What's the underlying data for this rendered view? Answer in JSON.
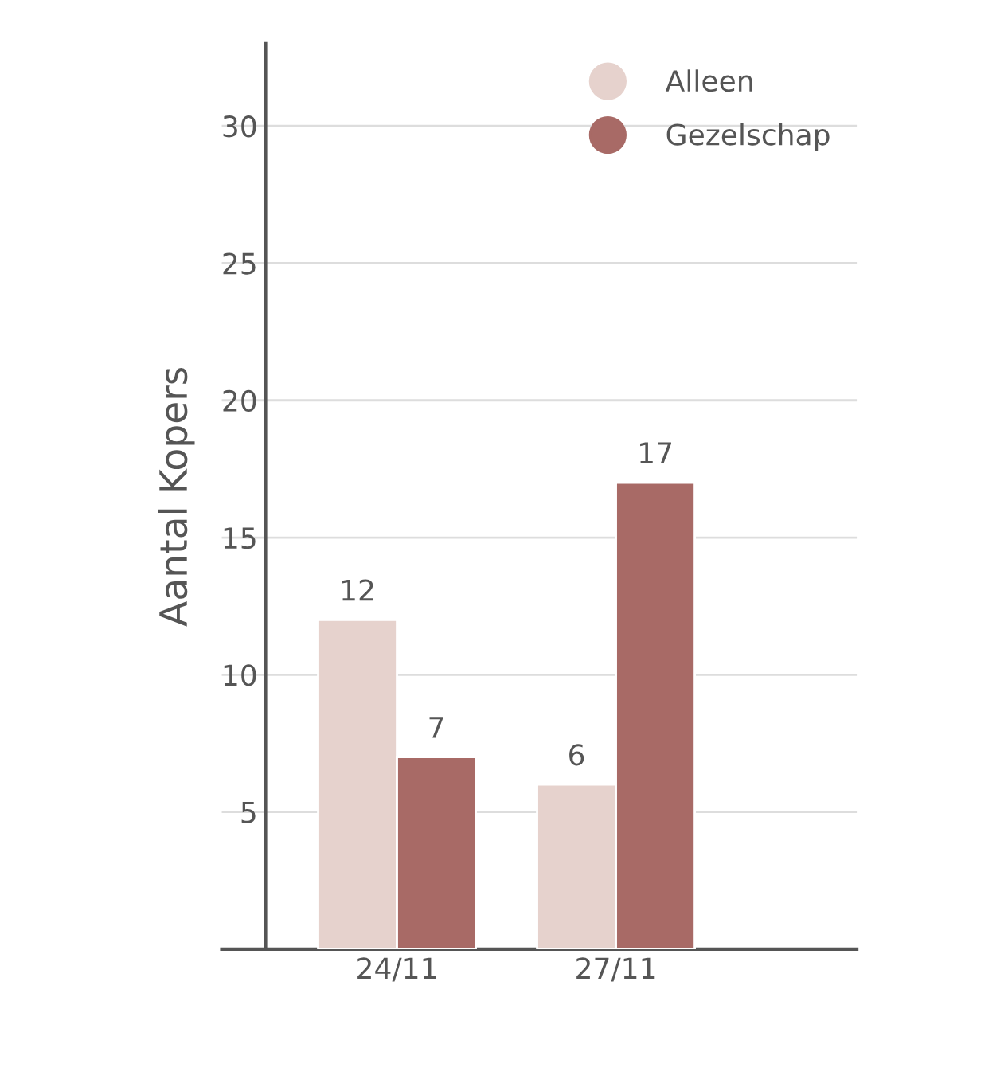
{
  "chart_data": {
    "type": "bar",
    "ylabel": "Aantal Kopers",
    "categories": [
      "24/11",
      "27/11"
    ],
    "series": [
      {
        "name": "Alleen",
        "color": "#e6d2cd",
        "values": [
          12,
          6
        ]
      },
      {
        "name": "Gezelschap",
        "color": "#a86a66",
        "values": [
          7,
          17
        ]
      }
    ],
    "ylim": [
      0,
      33
    ],
    "yticks": [
      5,
      10,
      15,
      20,
      25,
      30
    ],
    "grid": "y",
    "legend": "top right",
    "data_labels": true
  }
}
